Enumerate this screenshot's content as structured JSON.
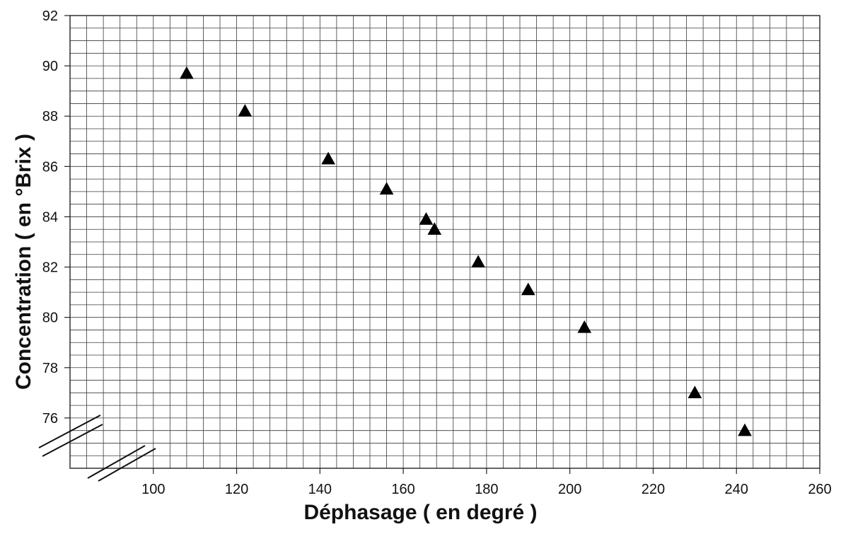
{
  "chart_data": {
    "type": "scatter",
    "xlabel": "Déphasage ( en degré )",
    "ylabel": "Concentration ( en °Brix )",
    "xlim": [
      80,
      260
    ],
    "ylim": [
      74,
      92
    ],
    "x_ticks": [
      "100",
      "120",
      "140",
      "160",
      "180",
      "200",
      "220",
      "240",
      "260"
    ],
    "y_ticks": [
      "76",
      "78",
      "80",
      "82",
      "84",
      "86",
      "88",
      "90",
      "92"
    ],
    "grid": true,
    "axis_breaks": [
      "x",
      "y"
    ],
    "marker": "triangle",
    "marker_color": "#000000",
    "points": [
      {
        "x": 108,
        "y": 89.7
      },
      {
        "x": 122,
        "y": 88.2
      },
      {
        "x": 142,
        "y": 86.3
      },
      {
        "x": 156,
        "y": 85.1
      },
      {
        "x": 165.5,
        "y": 83.9
      },
      {
        "x": 167.5,
        "y": 83.5
      },
      {
        "x": 178,
        "y": 82.2
      },
      {
        "x": 190,
        "y": 81.1
      },
      {
        "x": 203.5,
        "y": 79.6
      },
      {
        "x": 230,
        "y": 77.0
      },
      {
        "x": 242,
        "y": 75.5
      }
    ]
  }
}
